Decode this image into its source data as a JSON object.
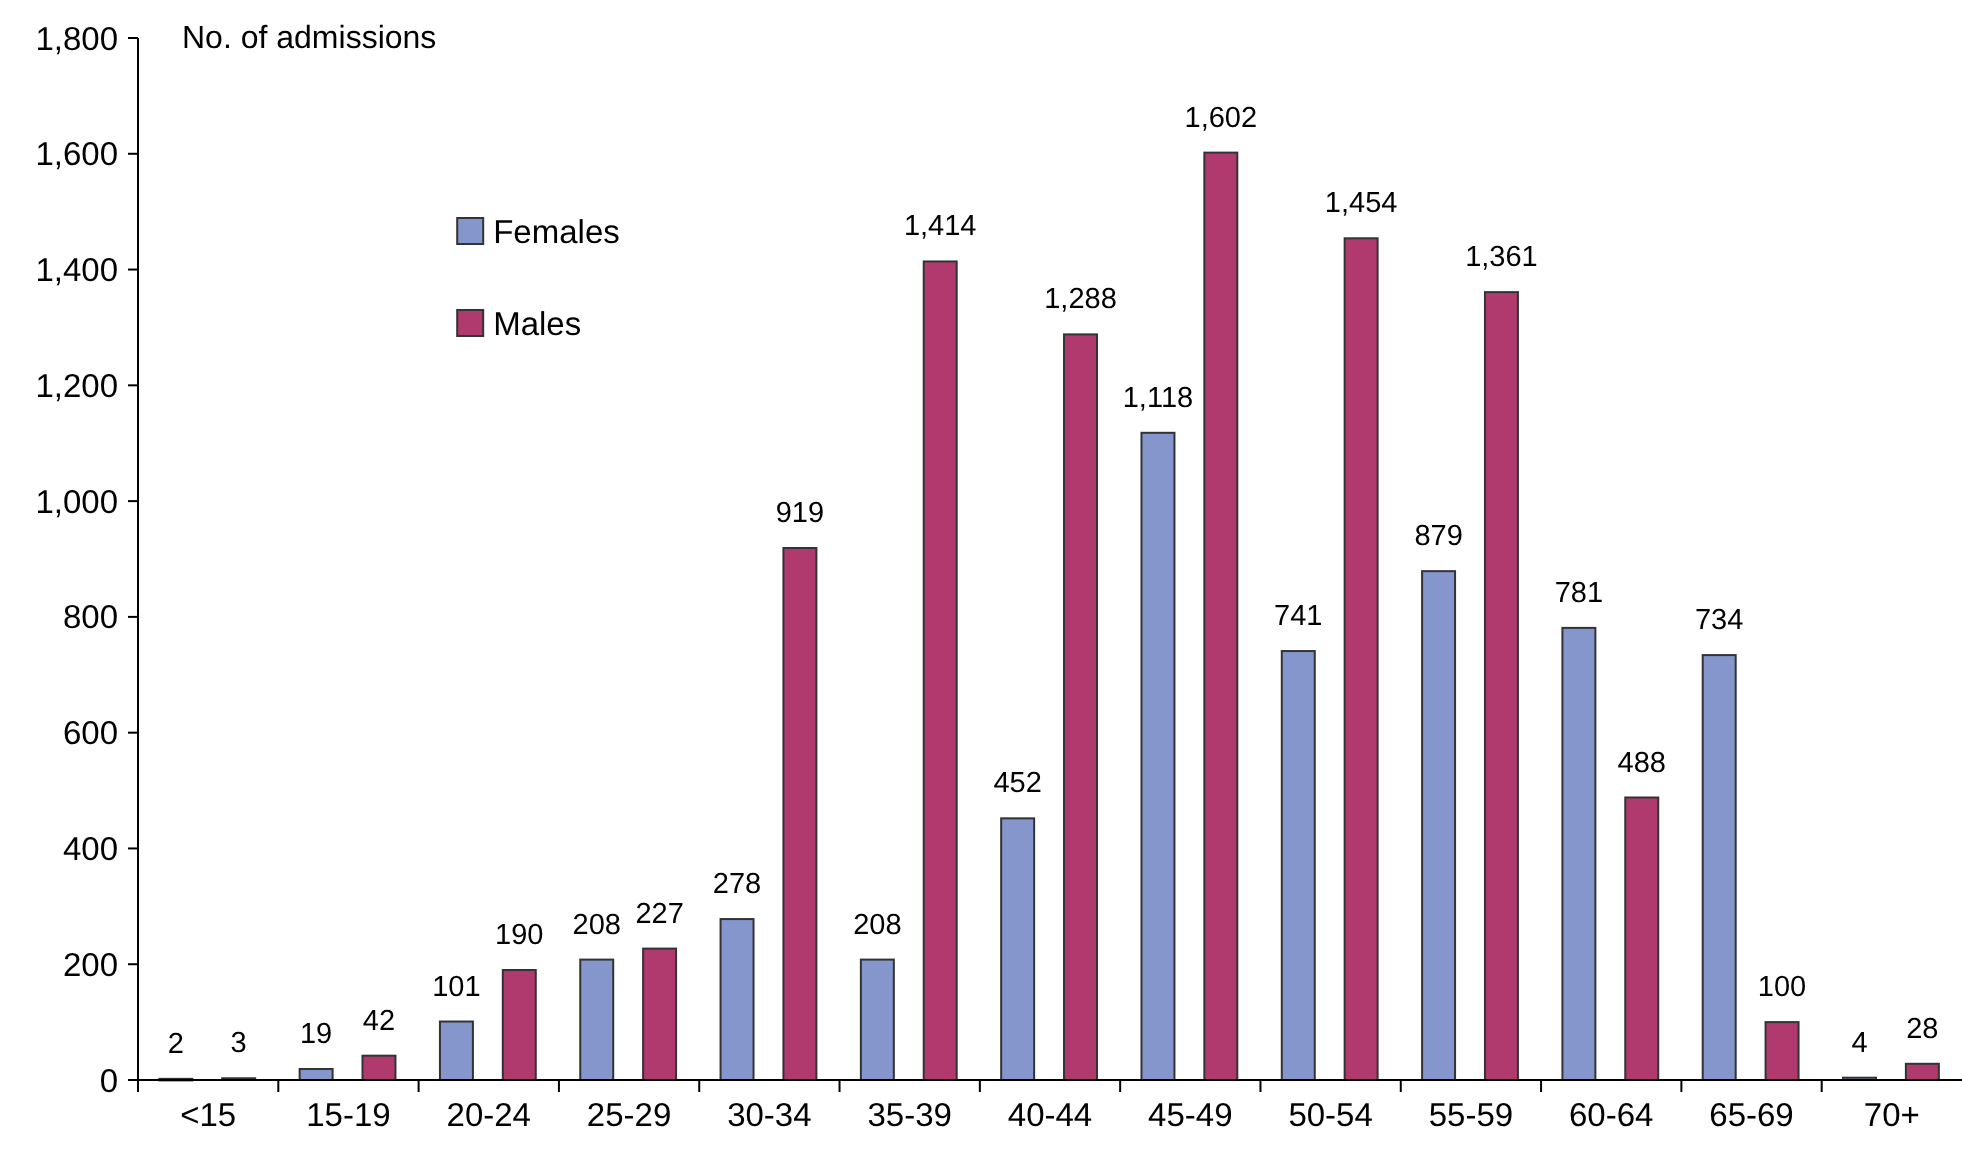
{
  "chart_data": {
    "type": "bar",
    "ylabel": "No. of admissions",
    "categories": [
      "<15",
      "15-19",
      "20-24",
      "25-29",
      "30-34",
      "35-39",
      "40-44",
      "45-49",
      "50-54",
      "55-59",
      "60-64",
      "65-69",
      "70+"
    ],
    "series": [
      {
        "name": "Females",
        "color": "#8496cc",
        "values": [
          2,
          19,
          101,
          208,
          278,
          208,
          452,
          1118,
          741,
          879,
          781,
          734,
          4
        ],
        "value_labels": [
          "2",
          "19",
          "101",
          "208",
          "278",
          "208",
          "452",
          "1,118",
          "741",
          "879",
          "781",
          "734",
          "4"
        ]
      },
      {
        "name": "Males",
        "color": "#b03a6e",
        "values": [
          3,
          42,
          190,
          227,
          919,
          1414,
          1288,
          1602,
          1454,
          1361,
          488,
          100,
          28
        ],
        "value_labels": [
          "3",
          "42",
          "190",
          "227",
          "919",
          "1,414",
          "1,288",
          "1,602",
          "1,454",
          "1,361",
          "488",
          "100",
          "28"
        ]
      }
    ],
    "ylim": [
      0,
      1800
    ],
    "yticks": [
      0,
      {
        "value": 200,
        "label": "200"
      },
      {
        "value": 400,
        "label": "400"
      },
      {
        "value": 600,
        "label": "600"
      },
      {
        "value": 800,
        "label": "800"
      },
      {
        "value": 1000,
        "label": "1,000"
      },
      {
        "value": 1200,
        "label": "1,200"
      },
      {
        "value": 1400,
        "label": "1,400"
      },
      {
        "value": 1600,
        "label": "1,600"
      },
      {
        "value": 1800,
        "label": "1,800"
      }
    ],
    "legend": "top left"
  }
}
